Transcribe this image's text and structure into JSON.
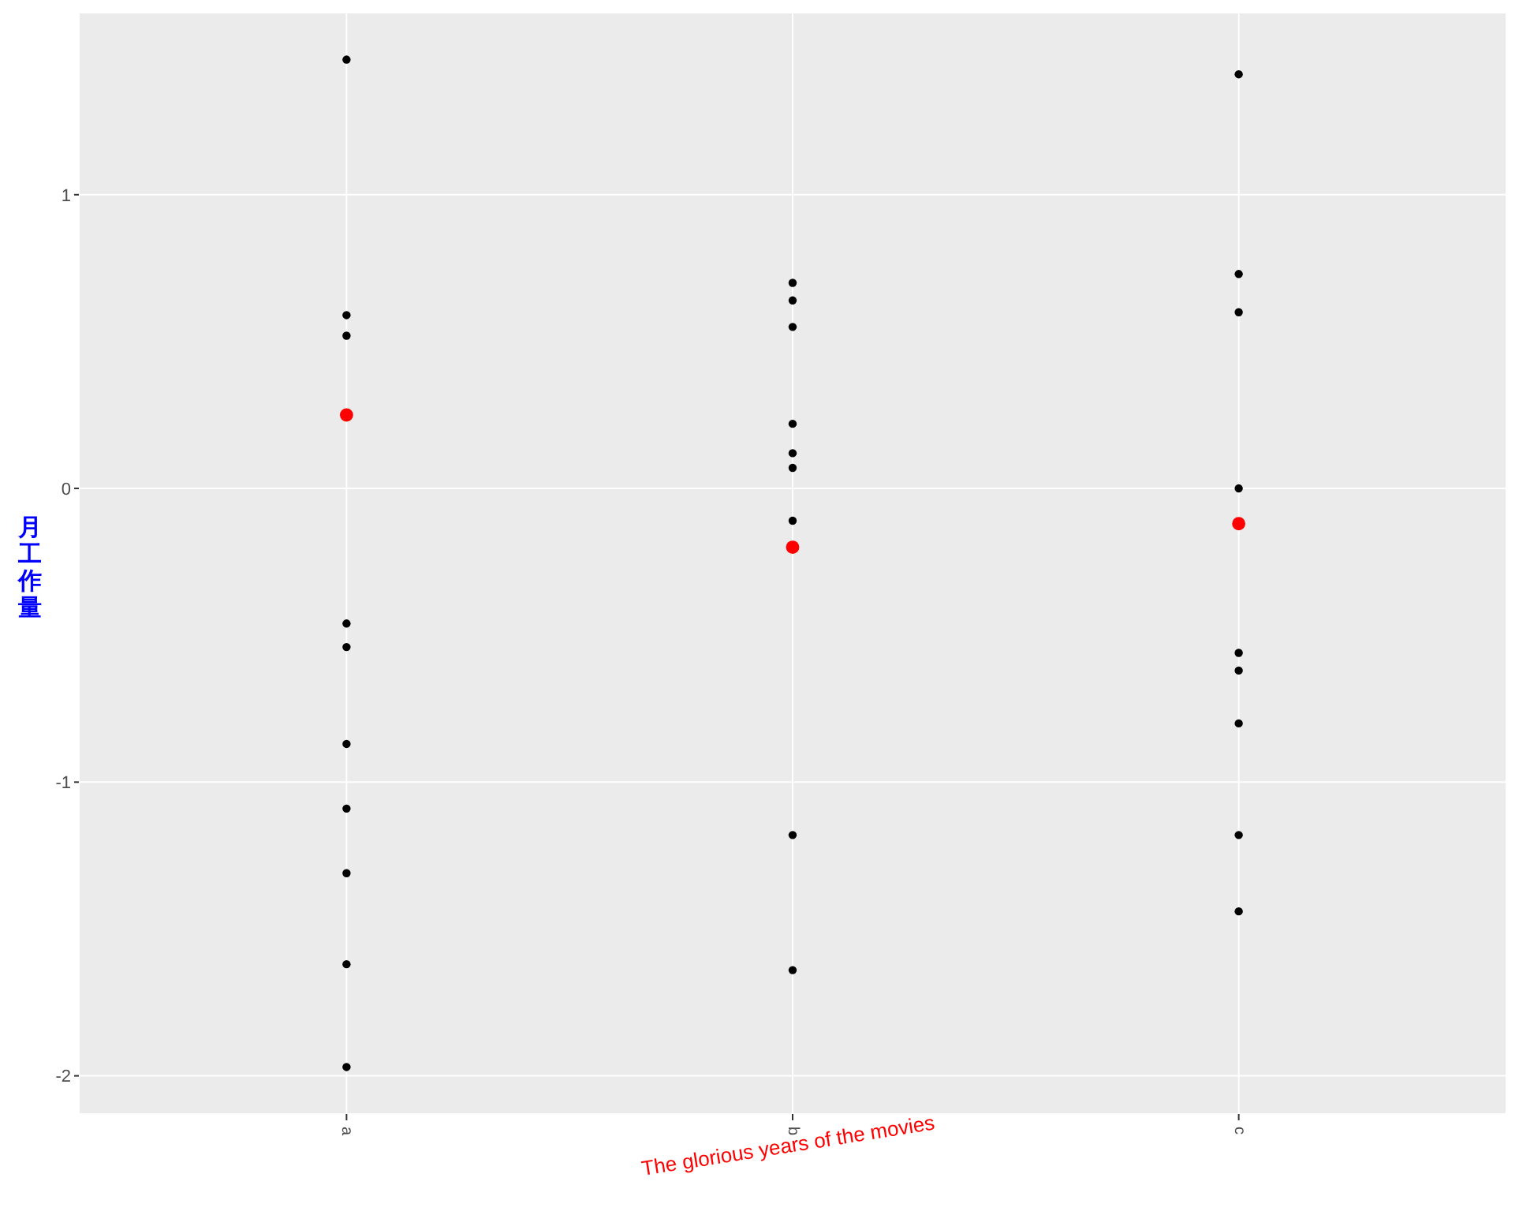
{
  "chart_data": {
    "type": "scatter",
    "xlabel": "The glorious years of the movies",
    "ylabel": "月工作量",
    "categories": [
      "a",
      "b",
      "c"
    ],
    "series": [
      {
        "color": "#000000",
        "x": [
          "a",
          "a",
          "a",
          "a",
          "a",
          "a",
          "a",
          "a",
          "a",
          "a",
          "b",
          "b",
          "b",
          "b",
          "b",
          "b",
          "b",
          "b",
          "b",
          "c",
          "c",
          "c",
          "c",
          "c",
          "c",
          "c",
          "c",
          "c"
        ],
        "values": [
          1.46,
          0.59,
          0.52,
          -0.46,
          -0.54,
          -0.87,
          -1.09,
          -1.31,
          -1.62,
          -1.97,
          0.7,
          0.64,
          0.55,
          0.22,
          0.12,
          0.07,
          -0.11,
          -1.18,
          -1.64,
          1.41,
          0.73,
          0.6,
          0.0,
          -0.56,
          -0.62,
          -0.8,
          -1.18,
          -1.44
        ]
      },
      {
        "color": "#ff0000",
        "x": [
          "a",
          "b",
          "c"
        ],
        "values": [
          0.25,
          -0.2,
          -0.12
        ]
      }
    ],
    "ylim": [
      -2.13,
      1.62
    ],
    "yticks": [
      -2,
      -1,
      0,
      1
    ],
    "grid": true,
    "legend": false,
    "marker": "circle"
  }
}
